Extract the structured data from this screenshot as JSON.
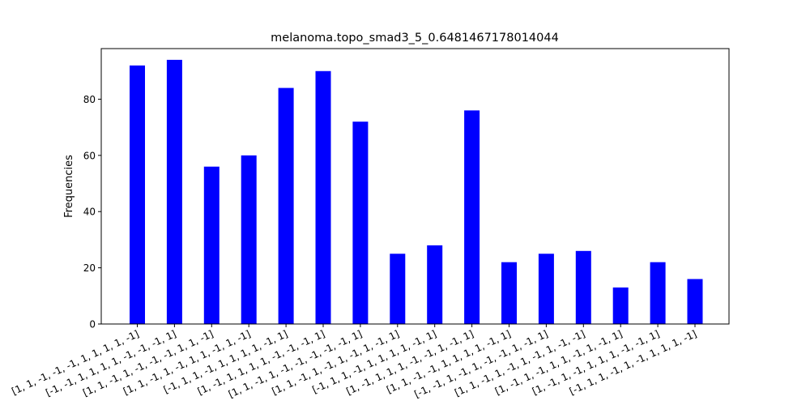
{
  "chart_data": {
    "type": "bar",
    "title": "melanoma.topo_smad3_5_0.6481467178014044",
    "xlabel": "",
    "ylabel": "Frequencies",
    "ylim": [
      0,
      98
    ],
    "yticks": [
      0,
      20,
      40,
      60,
      80
    ],
    "bar_color": "#0000ff",
    "categories": [
      "[1, 1, -1, -1, -1, 1, 1, 1, 1, -1]",
      "[-1, -1, 1, 1, 1, 1, -1, -1, -1, 1]",
      "[1, 1, -1, 1, -1, -1, -1, 1, 1, -1]",
      "[1, 1, -1, 1, -1, 1, 1, -1, 1, -1]",
      "[-1, 1, 1, -1, 1, 1, 1, 1, -1, 1]",
      "[1, -1, 1, 1, 1, 1, -1, -1, -1, 1]",
      "[1, 1, -1, 1, -1, -1, -1, -1, -1, 1]",
      "[1, 1, -1, 1, -1, 1, -1, 1, -1, 1]",
      "[-1, 1, 1, -1, 1, 1, 1, 1, -1, 1]",
      "[1, -1, 1, 1, 1, -1, -1, 1, -1, 1]",
      "[1, 1, -1, -1, 1, 1, 1, 1, -1, 1]",
      "[-1, -1, 1, -1, 1, -1, -1, 1, -1, 1]",
      "[1, 1, -1, 1, -1, 1, -1, 1, -1, -1]",
      "[1, -1, 1, -1, 1, 1, -1, 1, -1, 1]",
      "[1, -1, 1, -1, 1, 1, 1, -1, -1, 1]",
      "[-1, 1, 1, -1, 1, -1, 1, 1, 1, -1]"
    ],
    "values": [
      92,
      94,
      56,
      60,
      84,
      90,
      72,
      25,
      28,
      76,
      22,
      25,
      26,
      13,
      22,
      16
    ]
  }
}
